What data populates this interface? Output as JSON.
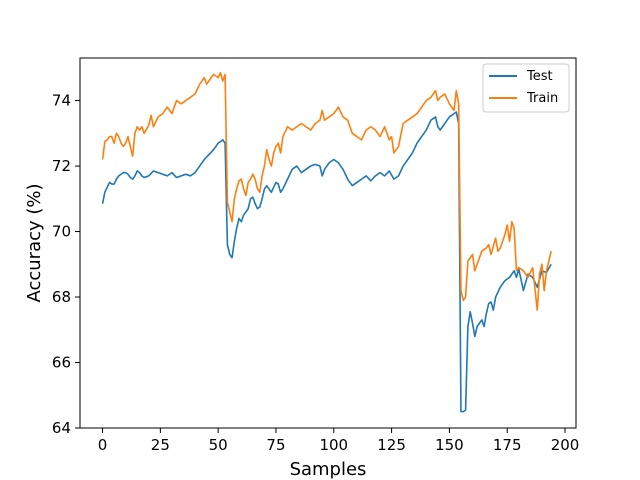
{
  "chart_data": {
    "type": "line",
    "xlabel": "Samples",
    "ylabel": "Accuracy (%)",
    "xlim": [
      -9.75,
      204.75
    ],
    "ylim": [
      64,
      75.3
    ],
    "xticks": [
      0,
      25,
      50,
      75,
      100,
      125,
      150,
      175,
      200
    ],
    "yticks": [
      64,
      66,
      68,
      70,
      72,
      74
    ],
    "grid": false,
    "legend_position": "top-right",
    "series": [
      {
        "name": "Test",
        "color": "#1f77b4",
        "anchors": [
          [
            0,
            70.85
          ],
          [
            1,
            71.2
          ],
          [
            2,
            71.35
          ],
          [
            3,
            71.5
          ],
          [
            4,
            71.45
          ],
          [
            5,
            71.45
          ],
          [
            6,
            71.6
          ],
          [
            7,
            71.7
          ],
          [
            8,
            71.75
          ],
          [
            9,
            71.8
          ],
          [
            10,
            71.8
          ],
          [
            11,
            71.75
          ],
          [
            12,
            71.65
          ],
          [
            13,
            71.6
          ],
          [
            14,
            71.7
          ],
          [
            15,
            71.85
          ],
          [
            16,
            71.8
          ],
          [
            17,
            71.7
          ],
          [
            18,
            71.65
          ],
          [
            20,
            71.7
          ],
          [
            22,
            71.85
          ],
          [
            24,
            71.8
          ],
          [
            26,
            71.75
          ],
          [
            28,
            71.7
          ],
          [
            30,
            71.8
          ],
          [
            32,
            71.65
          ],
          [
            34,
            71.7
          ],
          [
            36,
            71.75
          ],
          [
            38,
            71.7
          ],
          [
            40,
            71.8
          ],
          [
            42,
            72.0
          ],
          [
            44,
            72.2
          ],
          [
            46,
            72.35
          ],
          [
            48,
            72.5
          ],
          [
            50,
            72.7
          ],
          [
            51,
            72.75
          ],
          [
            52,
            72.8
          ],
          [
            53,
            72.7
          ],
          [
            54,
            69.6
          ],
          [
            55,
            69.3
          ],
          [
            56,
            69.2
          ],
          [
            57,
            69.7
          ],
          [
            58,
            70.1
          ],
          [
            59,
            70.4
          ],
          [
            60,
            70.3
          ],
          [
            61,
            70.5
          ],
          [
            62,
            70.6
          ],
          [
            63,
            70.7
          ],
          [
            64,
            71.0
          ],
          [
            65,
            71.05
          ],
          [
            66,
            70.85
          ],
          [
            67,
            70.7
          ],
          [
            68,
            70.75
          ],
          [
            69,
            71.0
          ],
          [
            70,
            71.3
          ],
          [
            71,
            71.4
          ],
          [
            72,
            71.3
          ],
          [
            73,
            71.2
          ],
          [
            74,
            71.35
          ],
          [
            75,
            71.5
          ],
          [
            76,
            71.45
          ],
          [
            77,
            71.2
          ],
          [
            78,
            71.3
          ],
          [
            80,
            71.6
          ],
          [
            82,
            71.9
          ],
          [
            84,
            72.0
          ],
          [
            86,
            71.8
          ],
          [
            88,
            71.9
          ],
          [
            90,
            72.0
          ],
          [
            92,
            72.05
          ],
          [
            94,
            72.0
          ],
          [
            95,
            71.7
          ],
          [
            96,
            71.9
          ],
          [
            98,
            72.1
          ],
          [
            100,
            72.2
          ],
          [
            102,
            72.1
          ],
          [
            104,
            71.9
          ],
          [
            106,
            71.6
          ],
          [
            108,
            71.4
          ],
          [
            110,
            71.5
          ],
          [
            112,
            71.6
          ],
          [
            114,
            71.7
          ],
          [
            116,
            71.55
          ],
          [
            118,
            71.7
          ],
          [
            120,
            71.8
          ],
          [
            122,
            71.7
          ],
          [
            124,
            71.85
          ],
          [
            126,
            71.6
          ],
          [
            128,
            71.7
          ],
          [
            130,
            72.0
          ],
          [
            132,
            72.2
          ],
          [
            134,
            72.4
          ],
          [
            136,
            72.7
          ],
          [
            138,
            72.9
          ],
          [
            140,
            73.1
          ],
          [
            142,
            73.4
          ],
          [
            144,
            73.5
          ],
          [
            145,
            73.2
          ],
          [
            146,
            73.1
          ],
          [
            148,
            73.3
          ],
          [
            150,
            73.5
          ],
          [
            152,
            73.6
          ],
          [
            153,
            73.65
          ],
          [
            154,
            73.3
          ],
          [
            155,
            64.5
          ],
          [
            156,
            64.5
          ],
          [
            157,
            64.55
          ],
          [
            158,
            67.1
          ],
          [
            159,
            67.55
          ],
          [
            160,
            67.2
          ],
          [
            161,
            66.8
          ],
          [
            162,
            67.1
          ],
          [
            164,
            67.3
          ],
          [
            165,
            67.1
          ],
          [
            166,
            67.5
          ],
          [
            167,
            67.8
          ],
          [
            168,
            67.85
          ],
          [
            169,
            67.6
          ],
          [
            170,
            68.0
          ],
          [
            172,
            68.3
          ],
          [
            174,
            68.5
          ],
          [
            176,
            68.6
          ],
          [
            178,
            68.8
          ],
          [
            179,
            68.6
          ],
          [
            180,
            68.85
          ],
          [
            182,
            68.2
          ],
          [
            184,
            68.7
          ],
          [
            186,
            68.6
          ],
          [
            188,
            68.3
          ],
          [
            190,
            68.8
          ],
          [
            192,
            68.75
          ],
          [
            194,
            69.0
          ]
        ]
      },
      {
        "name": "Train",
        "color": "#ff7f0e",
        "anchors": [
          [
            0,
            72.2
          ],
          [
            1,
            72.75
          ],
          [
            2,
            72.8
          ],
          [
            3,
            72.9
          ],
          [
            4,
            72.9
          ],
          [
            5,
            72.7
          ],
          [
            6,
            73.0
          ],
          [
            7,
            72.9
          ],
          [
            8,
            72.7
          ],
          [
            9,
            72.6
          ],
          [
            10,
            72.7
          ],
          [
            11,
            72.9
          ],
          [
            12,
            72.6
          ],
          [
            13,
            72.3
          ],
          [
            14,
            73.0
          ],
          [
            15,
            73.2
          ],
          [
            16,
            73.1
          ],
          [
            17,
            73.2
          ],
          [
            18,
            73.0
          ],
          [
            20,
            73.25
          ],
          [
            21,
            73.55
          ],
          [
            22,
            73.2
          ],
          [
            24,
            73.5
          ],
          [
            26,
            73.6
          ],
          [
            28,
            73.8
          ],
          [
            30,
            73.6
          ],
          [
            32,
            74.0
          ],
          [
            34,
            73.9
          ],
          [
            36,
            74.0
          ],
          [
            38,
            74.1
          ],
          [
            40,
            74.2
          ],
          [
            42,
            74.5
          ],
          [
            44,
            74.7
          ],
          [
            45,
            74.5
          ],
          [
            46,
            74.6
          ],
          [
            48,
            74.8
          ],
          [
            50,
            74.7
          ],
          [
            51,
            74.85
          ],
          [
            52,
            74.6
          ],
          [
            53,
            74.8
          ],
          [
            54,
            70.9
          ],
          [
            55,
            70.6
          ],
          [
            56,
            70.3
          ],
          [
            57,
            71.0
          ],
          [
            58,
            71.3
          ],
          [
            59,
            71.55
          ],
          [
            60,
            71.6
          ],
          [
            61,
            71.3
          ],
          [
            62,
            71.1
          ],
          [
            63,
            71.5
          ],
          [
            64,
            71.6
          ],
          [
            65,
            71.75
          ],
          [
            66,
            71.6
          ],
          [
            67,
            71.3
          ],
          [
            68,
            71.2
          ],
          [
            69,
            71.7
          ],
          [
            70,
            72.0
          ],
          [
            71,
            72.5
          ],
          [
            72,
            72.2
          ],
          [
            73,
            72.0
          ],
          [
            74,
            72.4
          ],
          [
            75,
            72.6
          ],
          [
            76,
            72.7
          ],
          [
            77,
            72.4
          ],
          [
            78,
            72.9
          ],
          [
            80,
            73.2
          ],
          [
            82,
            73.1
          ],
          [
            84,
            73.2
          ],
          [
            86,
            73.3
          ],
          [
            88,
            73.2
          ],
          [
            90,
            73.1
          ],
          [
            92,
            73.3
          ],
          [
            94,
            73.4
          ],
          [
            95,
            73.7
          ],
          [
            96,
            73.4
          ],
          [
            98,
            73.5
          ],
          [
            100,
            73.6
          ],
          [
            102,
            73.8
          ],
          [
            104,
            73.5
          ],
          [
            106,
            73.4
          ],
          [
            108,
            73.0
          ],
          [
            110,
            72.9
          ],
          [
            112,
            72.8
          ],
          [
            114,
            73.1
          ],
          [
            116,
            73.2
          ],
          [
            118,
            73.1
          ],
          [
            120,
            72.9
          ],
          [
            122,
            73.2
          ],
          [
            124,
            72.8
          ],
          [
            125,
            72.9
          ],
          [
            126,
            72.4
          ],
          [
            128,
            72.6
          ],
          [
            130,
            73.3
          ],
          [
            132,
            73.4
          ],
          [
            134,
            73.5
          ],
          [
            136,
            73.6
          ],
          [
            138,
            73.8
          ],
          [
            140,
            74.0
          ],
          [
            142,
            74.1
          ],
          [
            144,
            74.3
          ],
          [
            145,
            74.0
          ],
          [
            146,
            74.1
          ],
          [
            148,
            74.2
          ],
          [
            150,
            73.9
          ],
          [
            152,
            73.7
          ],
          [
            153,
            74.3
          ],
          [
            154,
            73.9
          ],
          [
            155,
            68.2
          ],
          [
            156,
            67.9
          ],
          [
            157,
            68.0
          ],
          [
            158,
            69.1
          ],
          [
            159,
            69.2
          ],
          [
            160,
            69.3
          ],
          [
            161,
            68.8
          ],
          [
            162,
            69.0
          ],
          [
            164,
            69.4
          ],
          [
            166,
            69.5
          ],
          [
            167,
            69.6
          ],
          [
            168,
            69.3
          ],
          [
            170,
            69.8
          ],
          [
            171,
            69.4
          ],
          [
            172,
            69.5
          ],
          [
            174,
            69.9
          ],
          [
            175,
            70.2
          ],
          [
            176,
            69.7
          ],
          [
            177,
            70.3
          ],
          [
            178,
            70.1
          ],
          [
            179,
            68.8
          ],
          [
            180,
            68.9
          ],
          [
            182,
            68.8
          ],
          [
            183,
            68.7
          ],
          [
            184,
            68.6
          ],
          [
            186,
            68.9
          ],
          [
            188,
            67.6
          ],
          [
            189,
            68.7
          ],
          [
            190,
            69.0
          ],
          [
            191,
            68.2
          ],
          [
            192,
            68.8
          ],
          [
            194,
            69.4
          ]
        ]
      }
    ]
  }
}
